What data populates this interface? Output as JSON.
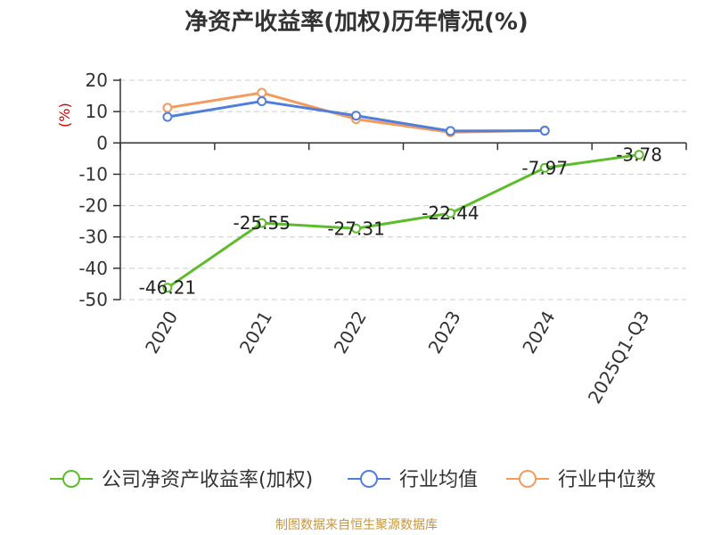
{
  "chart_data": {
    "type": "line",
    "title": "净资产收益率(加权)历年情况(%)",
    "ylabel": "(%)",
    "categories": [
      "2020",
      "2021",
      "2022",
      "2023",
      "2024",
      "2025Q1-Q3"
    ],
    "ylim": [
      -50,
      20
    ],
    "yticks": [
      20,
      10,
      0,
      -10,
      -20,
      -30,
      -40,
      -50
    ],
    "grid": true,
    "legend_position": "bottom",
    "series": [
      {
        "name": "公司净资产收益率(加权)",
        "color": "#5cbd2a",
        "values": [
          -46.21,
          -25.55,
          -27.31,
          -22.44,
          -7.97,
          -3.78
        ],
        "labels": [
          "-46.21",
          "-25.55",
          "-27.31",
          "-22.44",
          "-7.97",
          "-3.78"
        ]
      },
      {
        "name": "行业均值",
        "color": "#4f7fd8",
        "values": [
          8.3,
          13.3,
          8.7,
          3.8,
          3.9,
          null
        ]
      },
      {
        "name": "行业中位数",
        "color": "#f39a5e",
        "values": [
          11.2,
          16.0,
          7.6,
          3.4,
          4.0,
          null
        ]
      }
    ]
  },
  "source_note": "制图数据来自恒生聚源数据库",
  "colors": {
    "ylabel": "#cc0000",
    "axis": "#333333",
    "grid": "#cccccc"
  }
}
